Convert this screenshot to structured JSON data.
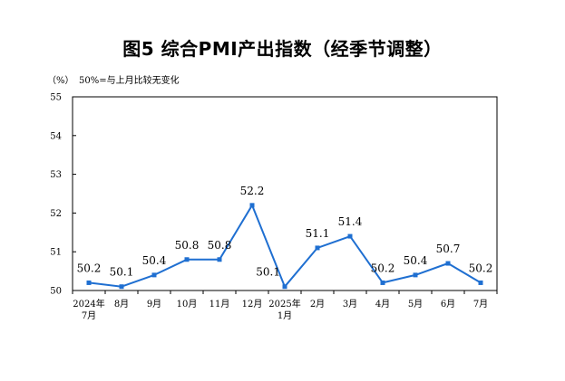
{
  "chart_data": {
    "type": "line",
    "title": "图5  综合PMI产出指数（经季节调整）",
    "ylabel": "（%）",
    "annotation": "50%=与上月比较无变化",
    "ylim": [
      50,
      55
    ],
    "yticks": [
      "50",
      "51",
      "52",
      "53",
      "54",
      "55"
    ],
    "categories": [
      [
        "2024年",
        "7月"
      ],
      [
        "8月"
      ],
      [
        "9月"
      ],
      [
        "10月"
      ],
      [
        "11月"
      ],
      [
        "12月"
      ],
      [
        "2025年",
        "1月"
      ],
      [
        "2月"
      ],
      [
        "3月"
      ],
      [
        "4月"
      ],
      [
        "5月"
      ],
      [
        "6月"
      ],
      [
        "7月"
      ]
    ],
    "series": [
      {
        "values": [
          50.2,
          50.1,
          50.4,
          50.8,
          50.8,
          52.2,
          50.1,
          51.1,
          51.4,
          50.2,
          50.4,
          50.7,
          50.2
        ]
      }
    ],
    "data_labels": [
      "50.2",
      "50.1",
      "50.4",
      "50.8",
      "50.8",
      "52.2",
      "50.1",
      "51.1",
      "51.4",
      "50.2",
      "50.4",
      "50.7",
      "50.2"
    ],
    "line_color": "#1f6fd1",
    "grid": false
  }
}
